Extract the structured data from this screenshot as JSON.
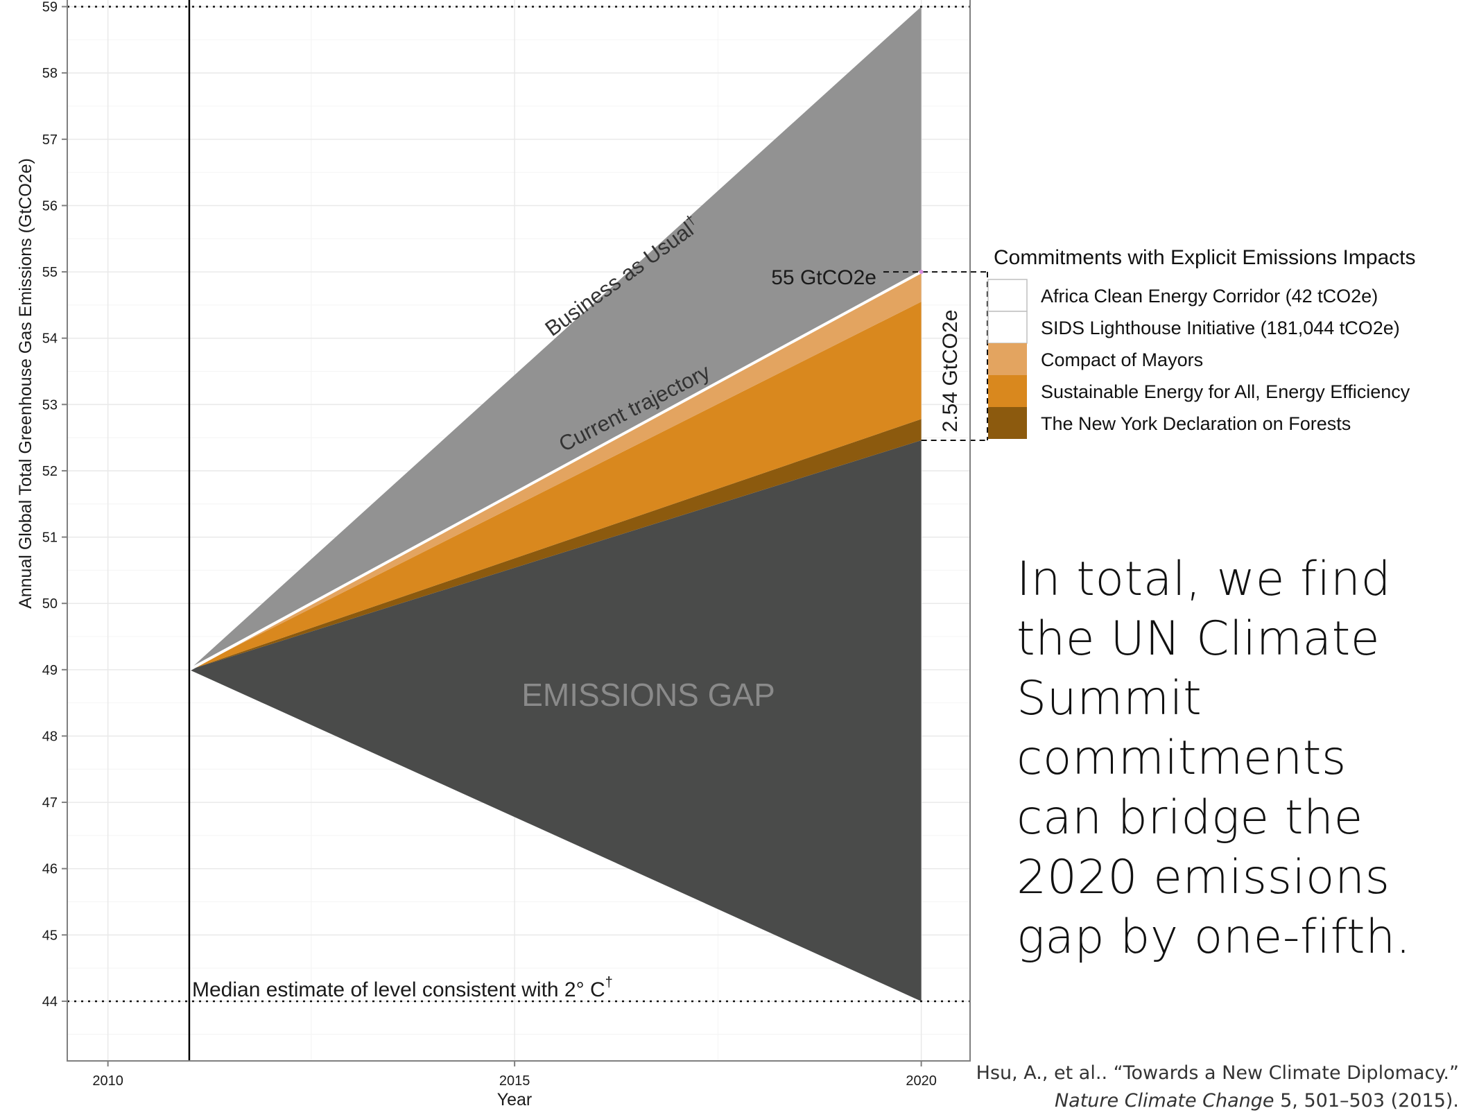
{
  "chart_data": {
    "type": "area",
    "xlabel": "Year",
    "ylabel": "Annual Global Total Greenhouse Gas Emissions (GtCO2e)",
    "xlim": [
      2009.5,
      2020.6
    ],
    "ylim": [
      43.1,
      59.1
    ],
    "x_ticks": [
      2010,
      2015,
      2020
    ],
    "x_tick_labels": [
      "2010",
      "2015",
      "2020"
    ],
    "y_ticks": [
      44,
      45,
      46,
      47,
      48,
      49,
      50,
      51,
      52,
      53,
      54,
      55,
      56,
      57,
      58,
      59
    ],
    "y_tick_labels": [
      "44",
      "45",
      "46",
      "47",
      "48",
      "49",
      "50",
      "51",
      "52",
      "53",
      "54",
      "55",
      "56",
      "57",
      "58",
      "59"
    ],
    "grid": true,
    "start": {
      "x": 2011,
      "y": 49
    },
    "end_x": 2020,
    "bands": [
      {
        "name": "EMISSIONS GAP",
        "color": "#4a4b4a",
        "lower_end": 44,
        "upper_end": 52.46
      },
      {
        "name": "The New York Declaration on Forests",
        "color": "#8c5a0e",
        "lower_end": 52.46,
        "upper_end": 52.78
      },
      {
        "name": "Sustainable Energy for All, Energy Efficiency",
        "color": "#d9881e",
        "lower_end": 52.78,
        "upper_end": 54.55
      },
      {
        "name": "Compact of Mayors",
        "color": "#e3a460",
        "lower_end": 54.55,
        "upper_end": 54.98
      },
      {
        "name": "Business as Usual gap",
        "color": "#929292",
        "lower_end": 55,
        "upper_end": 59
      }
    ],
    "current_trajectory": {
      "start": 49,
      "end": 55
    },
    "business_as_usual": {
      "start": 49,
      "end": 59
    },
    "reference_lines": [
      {
        "y": 59,
        "style": "dotted"
      },
      {
        "y": 44,
        "style": "dotted"
      }
    ],
    "vline_x": 2011,
    "annotations": {
      "bau_label": "Business as Usual",
      "bau_sup": "†",
      "trajectory_label": "Current trajectory",
      "gap_label": "EMISSIONS GAP",
      "median_label": "Median estimate of level consistent with 2° C",
      "median_sup": "†",
      "level_label": "55 GtCO2e",
      "bracket_label": "2.54 GtCO2e"
    },
    "legend": {
      "title": "Commitments with Explicit Emissions Impacts",
      "placement": "right",
      "items": [
        {
          "label": "Africa Clean Energy Corridor (42 tCO2e)",
          "color": "#ffffff"
        },
        {
          "label": "SIDS Lighthouse Initiative (181,044 tCO2e)",
          "color": "#ffffff"
        },
        {
          "label": "Compact of Mayors",
          "color": "#e3a460"
        },
        {
          "label": "Sustainable Energy for All, Energy Efficiency",
          "color": "#d9881e"
        },
        {
          "label": "The New York Declaration on Forests",
          "color": "#8c5a0e"
        }
      ]
    }
  },
  "summary_text": "In total, we find the UN Climate Summit commitments can bridge the 2020 emissions gap by one-fifth.",
  "citation": {
    "line1": "Hsu, A., et al.. “Towards a New Climate Diplomacy.”",
    "journal": "Nature Climate Change",
    "line2_rest": " 5, 501–503 (2015)."
  }
}
